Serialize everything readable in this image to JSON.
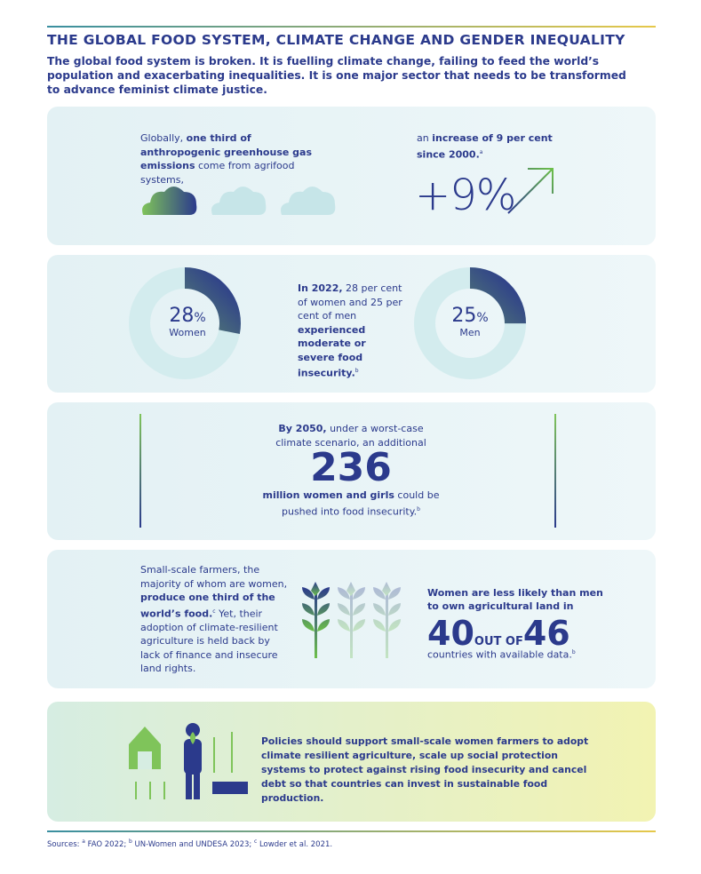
{
  "header": {
    "title": "THE GLOBAL FOOD SYSTEM, CLIMATE CHANGE AND GENDER INEQUALITY",
    "subtitle": "The global food system is broken. It is fuelling climate change, failing to feed the world’s population and exacerbating inequalities. It is one major sector that needs to be transformed to advance feminist climate justice."
  },
  "emissions": {
    "text": [
      {
        "text": "Globally, ",
        "bold": false
      },
      {
        "text": "one third of anthropogenic greenhouse gas emissions",
        "bold": true
      },
      {
        "text": " come from agrifood systems,",
        "bold": false
      }
    ],
    "increase_text": [
      {
        "text": "an ",
        "bold": false
      },
      {
        "text": "increase of 9 per cent since 2000.",
        "bold": true
      },
      {
        "text": "a",
        "sup": true
      }
    ],
    "big": "+9%"
  },
  "insecurity": {
    "women": {
      "value": 28,
      "unit": "%",
      "label": "Women"
    },
    "men": {
      "value": 25,
      "unit": "%",
      "label": "Men"
    },
    "text": [
      {
        "text": "In 2022,",
        "bold": true
      },
      {
        "text": " 28 per cent of women and 25 per cent of men ",
        "bold": false
      },
      {
        "text": "experienced moderate or severe food insecurity.",
        "bold": true
      },
      {
        "text": "b",
        "sup": true
      }
    ]
  },
  "projection": {
    "intro": [
      {
        "text": "By 2050,",
        "bold": true
      },
      {
        "text": " under a worst-case climate scenario, an additional",
        "bold": false
      }
    ],
    "number": 236,
    "outro": [
      {
        "text": "million women and girls",
        "bold": true
      },
      {
        "text": " could be pushed into food insecurity.",
        "bold": false
      },
      {
        "text": "b",
        "sup": true
      }
    ]
  },
  "farmers": {
    "text": [
      {
        "text": "Small-scale farmers, the majority of whom are women, ",
        "bold": false
      },
      {
        "text": "produce one third of the world’s food.",
        "bold": true
      },
      {
        "text": "c",
        "sup": true
      },
      {
        "text": " Yet, their adoption of climate-resilient agriculture is held back by lack of finance and insecure land rights.",
        "bold": false
      }
    ],
    "land_intro": "Women are less likely than men to own agricultural land in",
    "count": 40,
    "out_of": "OUT OF",
    "total": 46,
    "land_outro": [
      {
        "text": "countries with available data.",
        "bold": false
      },
      {
        "text": "b",
        "sup": true
      }
    ]
  },
  "policy": {
    "text": "Policies should support small-scale women farmers to adopt climate resilient agriculture, scale up social protection systems to protect against rising food insecurity and cancel debt so that countries can invest in sustainable food production."
  },
  "sources": [
    {
      "text": "Sources: ",
      "bold": false
    },
    {
      "text": "a",
      "sup": true
    },
    {
      "text": " FAO 2022; ",
      "bold": false
    },
    {
      "text": "b",
      "sup": true
    },
    {
      "text": " UN-Women and UNDESA 2023; ",
      "bold": false
    },
    {
      "text": "c",
      "sup": true
    },
    {
      "text": " Lowder et al. 2021.",
      "bold": false
    }
  ]
}
